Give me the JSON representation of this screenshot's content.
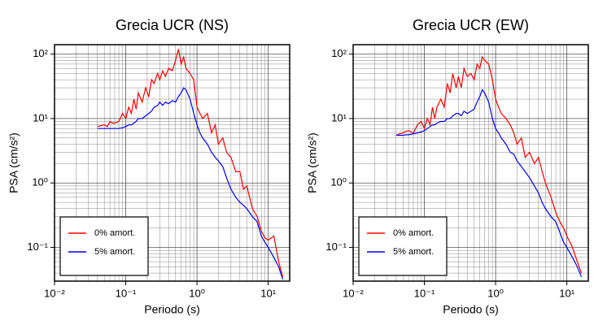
{
  "chart_data": [
    {
      "type": "line",
      "title": "Grecia UCR (NS)",
      "xlabel": "Periodo (s)",
      "ylabel": "PSA (cm/s²)",
      "log_x": true,
      "log_y": true,
      "grid": true,
      "legend": "lower left",
      "xlim": [
        0.01,
        20
      ],
      "ylim": [
        0.03,
        140
      ],
      "xticks": [
        {
          "value": 0.01,
          "label": "10⁻²"
        },
        {
          "value": 0.1,
          "label": "10⁻¹"
        },
        {
          "value": 1,
          "label": "10⁰"
        },
        {
          "value": 10,
          "label": "10¹"
        }
      ],
      "yticks": [
        {
          "value": 0.1,
          "label": "10⁻¹"
        },
        {
          "value": 1,
          "label": "10⁰"
        },
        {
          "value": 10,
          "label": "10¹"
        },
        {
          "value": 100,
          "label": "10²"
        }
      ],
      "x": [
        0.04,
        0.045,
        0.05,
        0.055,
        0.06,
        0.065,
        0.07,
        0.08,
        0.09,
        0.1,
        0.11,
        0.12,
        0.13,
        0.14,
        0.15,
        0.17,
        0.19,
        0.21,
        0.23,
        0.25,
        0.28,
        0.3,
        0.33,
        0.36,
        0.4,
        0.45,
        0.5,
        0.55,
        0.6,
        0.65,
        0.7,
        0.8,
        0.9,
        1.0,
        1.1,
        1.2,
        1.4,
        1.6,
        1.8,
        2.0,
        2.3,
        2.6,
        3.0,
        3.5,
        4.0,
        4.5,
        5,
        6,
        7,
        8,
        9,
        10,
        12,
        14,
        16
      ],
      "series": [
        {
          "name": "0% amort.",
          "color": "#ff0000",
          "values": [
            7.5,
            7.8,
            8,
            7.5,
            9,
            8.5,
            8.5,
            9,
            12,
            10,
            15,
            12,
            20,
            14,
            25,
            18,
            30,
            22,
            40,
            35,
            50,
            40,
            55,
            45,
            60,
            55,
            80,
            120,
            70,
            90,
            60,
            50,
            40,
            15,
            12,
            10,
            12,
            6,
            8,
            4,
            5,
            3,
            2.5,
            1.5,
            1.5,
            0.8,
            0.9,
            0.4,
            0.3,
            0.18,
            0.14,
            0.13,
            0.15,
            0.06,
            0.035
          ]
        },
        {
          "name": "5% amort.",
          "color": "#0000ff",
          "values": [
            7,
            7,
            7,
            7,
            7,
            7,
            7,
            7,
            7.2,
            7.5,
            8,
            8,
            8.5,
            9,
            10,
            10,
            11,
            12,
            13,
            15,
            16,
            18,
            16,
            18,
            17,
            19,
            18,
            22,
            25,
            30,
            28,
            20,
            12,
            8,
            6,
            5,
            4,
            3,
            2.5,
            2.2,
            1.8,
            1.2,
            0.8,
            0.6,
            0.5,
            0.45,
            0.4,
            0.3,
            0.25,
            0.15,
            0.12,
            0.1,
            0.07,
            0.05,
            0.032
          ]
        }
      ]
    },
    {
      "type": "line",
      "title": "Grecia UCR (EW)",
      "xlabel": "Periodo (s)",
      "ylabel": "PSA (cm/s²)",
      "log_x": true,
      "log_y": true,
      "grid": true,
      "legend": "lower left",
      "xlim": [
        0.01,
        20
      ],
      "ylim": [
        0.03,
        140
      ],
      "xticks": [
        {
          "value": 0.01,
          "label": "10⁻²"
        },
        {
          "value": 0.1,
          "label": "10⁻¹"
        },
        {
          "value": 1,
          "label": "10⁰"
        },
        {
          "value": 10,
          "label": "10¹"
        }
      ],
      "yticks": [
        {
          "value": 0.1,
          "label": "10⁻¹"
        },
        {
          "value": 1,
          "label": "10⁰"
        },
        {
          "value": 10,
          "label": "10¹"
        },
        {
          "value": 100,
          "label": "10²"
        }
      ],
      "x": [
        0.04,
        0.045,
        0.05,
        0.055,
        0.06,
        0.065,
        0.07,
        0.08,
        0.09,
        0.1,
        0.11,
        0.12,
        0.13,
        0.14,
        0.15,
        0.17,
        0.19,
        0.21,
        0.23,
        0.25,
        0.28,
        0.3,
        0.33,
        0.36,
        0.4,
        0.45,
        0.5,
        0.55,
        0.6,
        0.65,
        0.7,
        0.8,
        0.9,
        1.0,
        1.1,
        1.2,
        1.4,
        1.6,
        1.8,
        2.0,
        2.3,
        2.6,
        3.0,
        3.5,
        4.0,
        4.5,
        5,
        6,
        7,
        8,
        9,
        10,
        12,
        14,
        16
      ],
      "series": [
        {
          "name": "0% amort.",
          "color": "#ff0000",
          "values": [
            5.5,
            5.8,
            6,
            6.3,
            6.5,
            6.2,
            6,
            8,
            9,
            7,
            10,
            8,
            15,
            10,
            15,
            20,
            15,
            35,
            25,
            50,
            30,
            45,
            30,
            60,
            45,
            50,
            40,
            70,
            60,
            90,
            80,
            70,
            40,
            20,
            15,
            12,
            10,
            8,
            6,
            4,
            5,
            2.5,
            3,
            2,
            2.5,
            1.5,
            1,
            0.6,
            0.35,
            0.25,
            0.2,
            0.15,
            0.1,
            0.06,
            0.04
          ]
        },
        {
          "name": "5% amort.",
          "color": "#0000ff",
          "values": [
            5.5,
            5.5,
            5.5,
            5.6,
            5.6,
            5.7,
            5.8,
            6,
            6.2,
            6.5,
            7,
            7.5,
            8,
            8,
            8.5,
            9,
            9,
            10,
            10,
            11,
            12,
            12,
            11,
            13,
            12,
            13,
            14,
            18,
            22,
            28,
            25,
            18,
            10,
            7,
            6,
            5,
            4,
            3,
            2.8,
            2.2,
            1.8,
            1.5,
            1.2,
            0.9,
            0.7,
            0.5,
            0.4,
            0.3,
            0.25,
            0.17,
            0.12,
            0.1,
            0.07,
            0.05,
            0.035
          ]
        }
      ]
    }
  ]
}
